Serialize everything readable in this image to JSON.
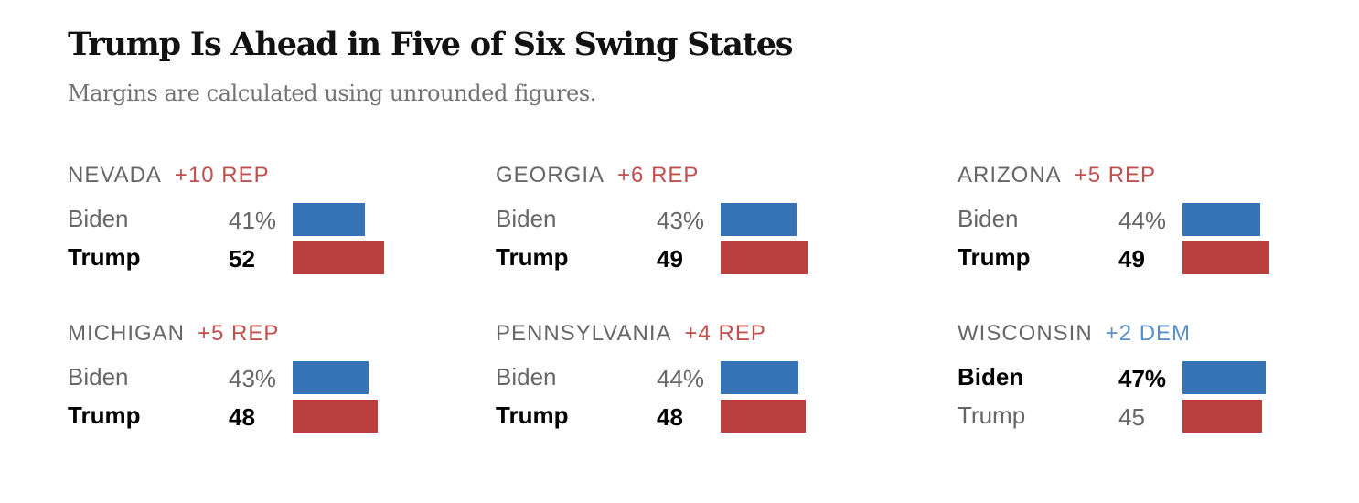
{
  "title": "Trump Is Ahead in Five of Six Swing States",
  "subtitle": "Margins are calculated using unrounded figures.",
  "colors": {
    "dem": "#3573b5",
    "rep": "#bb3f3e",
    "rep_text": "#c0504d",
    "dem_text": "#5a8fc6"
  },
  "chart_data": {
    "type": "bar",
    "title": "Trump Is Ahead in Five of Six Swing States",
    "subtitle": "Margins are calculated using unrounded figures.",
    "states": [
      {
        "name": "NEVADA",
        "margin": "+10 REP",
        "leader": "rep",
        "biden": {
          "label": "Biden",
          "value": 41,
          "display": "41%"
        },
        "trump": {
          "label": "Trump",
          "value": 52,
          "display": "52"
        }
      },
      {
        "name": "GEORGIA",
        "margin": "+6 REP",
        "leader": "rep",
        "biden": {
          "label": "Biden",
          "value": 43,
          "display": "43%"
        },
        "trump": {
          "label": "Trump",
          "value": 49,
          "display": "49"
        }
      },
      {
        "name": "ARIZONA",
        "margin": "+5 REP",
        "leader": "rep",
        "biden": {
          "label": "Biden",
          "value": 44,
          "display": "44%"
        },
        "trump": {
          "label": "Trump",
          "value": 49,
          "display": "49"
        }
      },
      {
        "name": "MICHIGAN",
        "margin": "+5 REP",
        "leader": "rep",
        "biden": {
          "label": "Biden",
          "value": 43,
          "display": "43%"
        },
        "trump": {
          "label": "Trump",
          "value": 48,
          "display": "48"
        }
      },
      {
        "name": "PENNSYLVANIA",
        "margin": "+4 REP",
        "leader": "rep",
        "biden": {
          "label": "Biden",
          "value": 44,
          "display": "44%"
        },
        "trump": {
          "label": "Trump",
          "value": 48,
          "display": "48"
        }
      },
      {
        "name": "WISCONSIN",
        "margin": "+2 DEM",
        "leader": "dem",
        "biden": {
          "label": "Biden",
          "value": 47,
          "display": "47%"
        },
        "trump": {
          "label": "Trump",
          "value": 45,
          "display": "45"
        }
      }
    ]
  }
}
